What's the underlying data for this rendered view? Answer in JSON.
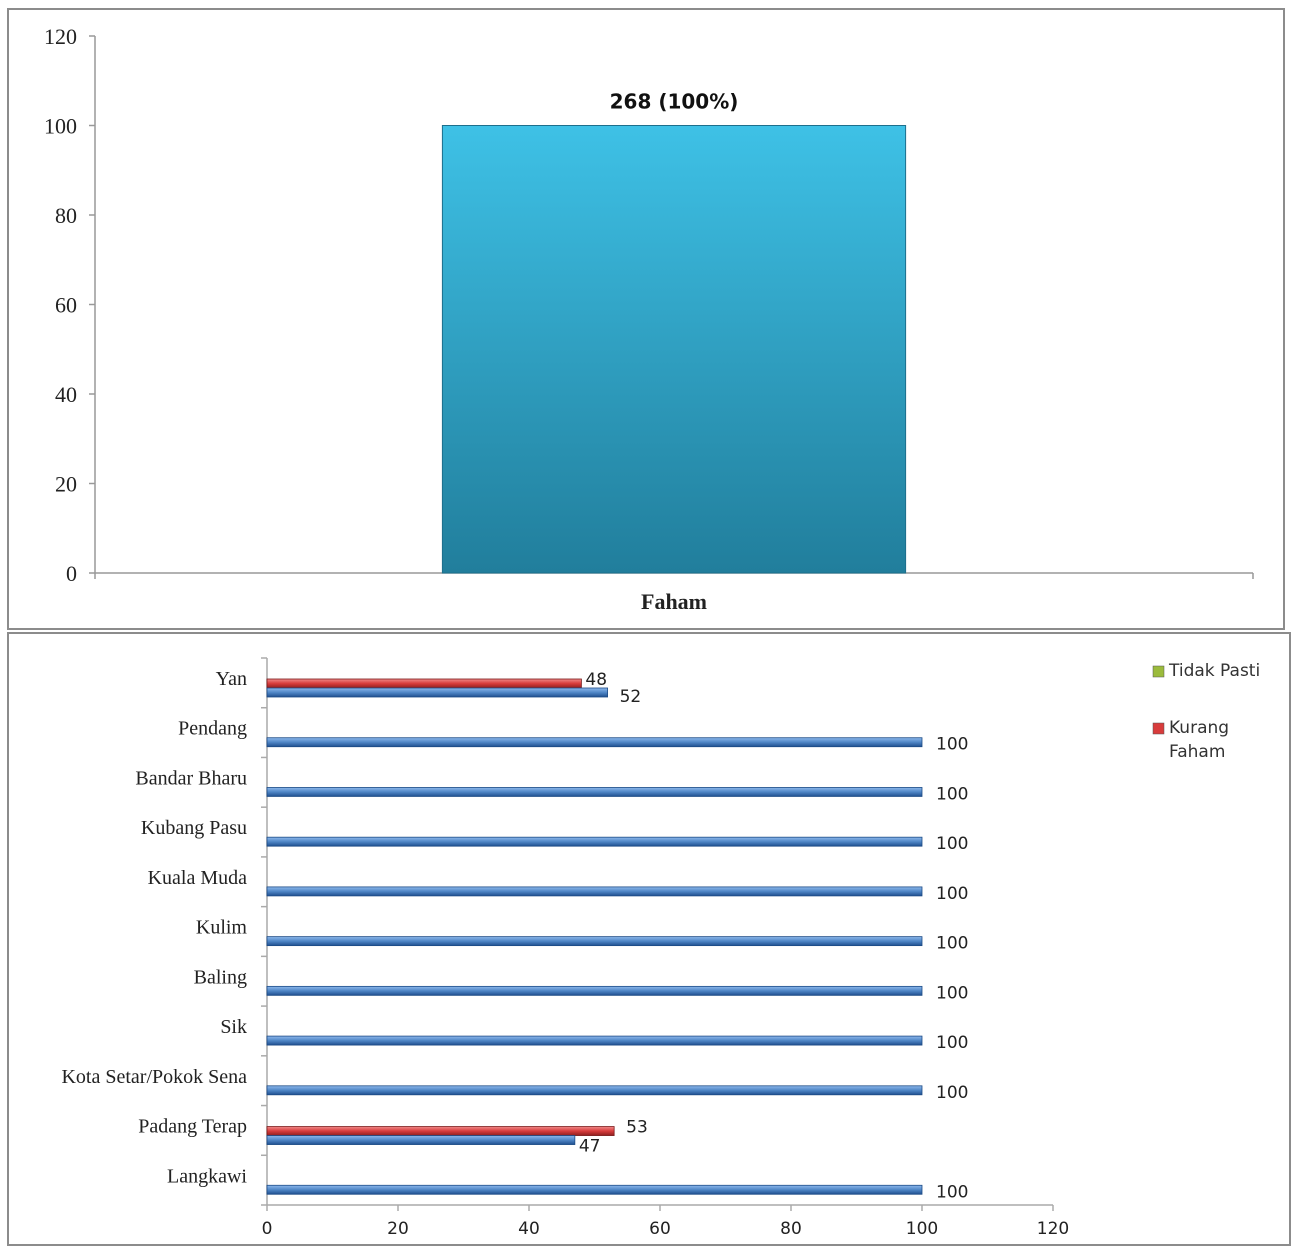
{
  "chart_data": [
    {
      "type": "bar",
      "orientation": "vertical",
      "categories": [
        "Faham"
      ],
      "values": [
        100
      ],
      "data_labels": [
        "268 (100%)"
      ],
      "ylim": [
        0,
        120
      ],
      "yticks": [
        0,
        20,
        40,
        60,
        80,
        100,
        120
      ],
      "colors": {
        "bar": "#2fa8cc"
      },
      "title": "",
      "xlabel": "",
      "ylabel": ""
    },
    {
      "type": "bar",
      "orientation": "horizontal",
      "categories": [
        "Yan",
        "Pendang",
        "Bandar Bharu",
        "Kubang Pasu",
        "Kuala Muda",
        "Kulim",
        "Baling",
        "Sik",
        "Kota Setar/Pokok Sena",
        "Padang Terap",
        "Langkawi"
      ],
      "series": [
        {
          "values": [
            52,
            100,
            100,
            100,
            100,
            100,
            100,
            100,
            100,
            47,
            100
          ],
          "color": "#4f86c6"
        },
        {
          "name": "Kurang Faham",
          "values": [
            48,
            null,
            null,
            null,
            null,
            null,
            null,
            null,
            null,
            53,
            null
          ],
          "color": "#d83c3c"
        },
        {
          "name": "Tidak Pasti",
          "values": [
            null,
            null,
            null,
            null,
            null,
            null,
            null,
            null,
            null,
            null,
            null
          ],
          "color": "#9bbb3c"
        }
      ],
      "xlim": [
        0,
        120
      ],
      "xticks": [
        0,
        20,
        40,
        60,
        80,
        100,
        120
      ],
      "legend": {
        "placement": "right",
        "items": [
          "Tidak Pasti",
          "Kurang Faham"
        ]
      },
      "title": "",
      "xlabel": "",
      "ylabel": ""
    }
  ]
}
